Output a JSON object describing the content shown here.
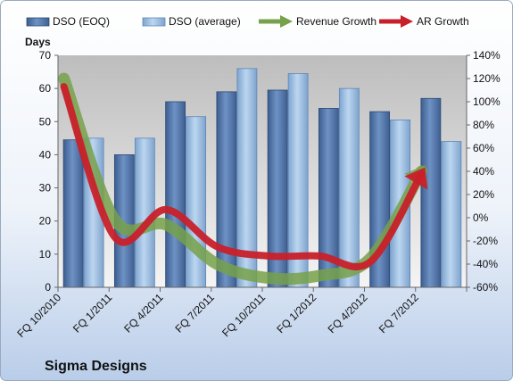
{
  "chart_data": {
    "type": "bar",
    "ylabel": "Days",
    "company": "Sigma Designs",
    "categories": [
      "FQ 10/2010",
      "FQ 1/2011",
      "FQ 4/2011",
      "FQ 7/2011",
      "FQ 10/2011",
      "FQ 1/2012",
      "FQ 4/2012",
      "FQ 7/2012"
    ],
    "ylim": [
      0,
      70
    ],
    "y_ticks": [
      "0",
      "10",
      "20",
      "30",
      "40",
      "50",
      "60",
      "70"
    ],
    "y2lim": [
      -60,
      140
    ],
    "y2_ticks": [
      "-60%",
      "-40%",
      "-20%",
      "0%",
      "20%",
      "40%",
      "60%",
      "80%",
      "100%",
      "120%",
      "140%"
    ],
    "legend_position": "top",
    "grid": false,
    "series": [
      {
        "name": "DSO (EOQ)",
        "kind": "bar",
        "axis": "left",
        "color": "#4a6fa5",
        "values": [
          44.5,
          40,
          56,
          59,
          59.5,
          54,
          53,
          57
        ]
      },
      {
        "name": "DSO (average)",
        "kind": "bar",
        "axis": "left",
        "color": "#95b9de",
        "values": [
          45,
          45,
          51.5,
          66,
          64.5,
          60,
          50.5,
          44
        ]
      },
      {
        "name": "Revenue Growth",
        "kind": "line",
        "axis": "right",
        "color": "#77a14a",
        "values": [
          120,
          -2,
          -6,
          -40,
          -52,
          -50,
          -35,
          40
        ]
      },
      {
        "name": "AR Growth",
        "kind": "line",
        "axis": "right",
        "color": "#c8202a",
        "values": [
          113,
          -17,
          7,
          -25,
          -33,
          -33,
          -38,
          38
        ]
      }
    ]
  }
}
